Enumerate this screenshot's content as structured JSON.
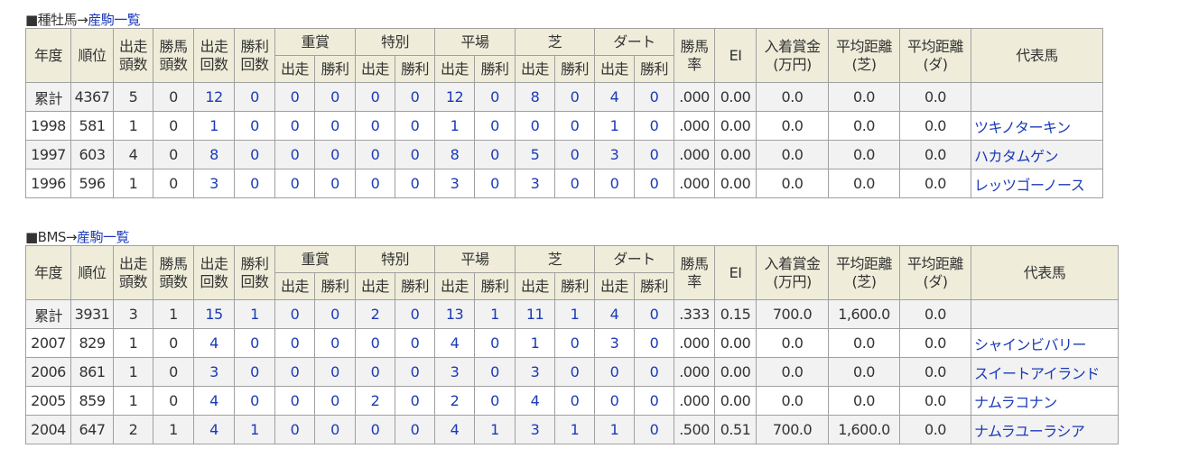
{
  "headers": {
    "year": "年度",
    "rank": "順位",
    "starters": "出走頭数",
    "winners": "勝馬頭数",
    "starts": "出走回数",
    "wins": "勝利回数",
    "graded": "重賞",
    "special": "特別",
    "flat": "平場",
    "turf": "芝",
    "dirt": "ダート",
    "sub_start": "出走",
    "sub_win": "勝利",
    "win_rate": "勝馬率",
    "ei": "EI",
    "prize": "入着賞金(万円)",
    "avg_turf": "平均距離(芝)",
    "avg_dirt": "平均距離(ダ)",
    "rep": "代表馬"
  },
  "tables": [
    {
      "prefix": "■種牡馬→",
      "link": "産駒一覧",
      "rows": [
        [
          "累計",
          "4367",
          "5",
          "0",
          "12",
          "0",
          "0",
          "0",
          "0",
          "0",
          "12",
          "0",
          "8",
          "0",
          "4",
          "0",
          ".000",
          "0.00",
          "0.0",
          "0.0",
          "0.0",
          ""
        ],
        [
          "1998",
          "581",
          "1",
          "0",
          "1",
          "0",
          "0",
          "0",
          "0",
          "0",
          "1",
          "0",
          "0",
          "0",
          "1",
          "0",
          ".000",
          "0.00",
          "0.0",
          "0.0",
          "0.0",
          "ツキノターキン"
        ],
        [
          "1997",
          "603",
          "4",
          "0",
          "8",
          "0",
          "0",
          "0",
          "0",
          "0",
          "8",
          "0",
          "5",
          "0",
          "3",
          "0",
          ".000",
          "0.00",
          "0.0",
          "0.0",
          "0.0",
          "ハカタムゲン"
        ],
        [
          "1996",
          "596",
          "1",
          "0",
          "3",
          "0",
          "0",
          "0",
          "0",
          "0",
          "3",
          "0",
          "3",
          "0",
          "0",
          "0",
          ".000",
          "0.00",
          "0.0",
          "0.0",
          "0.0",
          "レッツゴーノース"
        ]
      ]
    },
    {
      "prefix": "■BMS→",
      "link": "産駒一覧",
      "rows": [
        [
          "累計",
          "3931",
          "3",
          "1",
          "15",
          "1",
          "0",
          "0",
          "2",
          "0",
          "13",
          "1",
          "11",
          "1",
          "4",
          "0",
          ".333",
          "0.15",
          "700.0",
          "1,600.0",
          "0.0",
          ""
        ],
        [
          "2007",
          "829",
          "1",
          "0",
          "4",
          "0",
          "0",
          "0",
          "0",
          "0",
          "4",
          "0",
          "1",
          "0",
          "3",
          "0",
          ".000",
          "0.00",
          "0.0",
          "0.0",
          "0.0",
          "シャインビバリー"
        ],
        [
          "2006",
          "861",
          "1",
          "0",
          "3",
          "0",
          "0",
          "0",
          "0",
          "0",
          "3",
          "0",
          "3",
          "0",
          "0",
          "0",
          ".000",
          "0.00",
          "0.0",
          "0.0",
          "0.0",
          "スイートアイランド"
        ],
        [
          "2005",
          "859",
          "1",
          "0",
          "4",
          "0",
          "0",
          "0",
          "2",
          "0",
          "2",
          "0",
          "4",
          "0",
          "0",
          "0",
          ".000",
          "0.00",
          "0.0",
          "0.0",
          "0.0",
          "ナムラコナン"
        ],
        [
          "2004",
          "647",
          "2",
          "1",
          "4",
          "1",
          "0",
          "0",
          "0",
          "0",
          "4",
          "1",
          "3",
          "1",
          "1",
          "0",
          ".500",
          "0.51",
          "700.0",
          "1,600.0",
          "0.0",
          "ナムラユーラシア"
        ]
      ]
    }
  ]
}
